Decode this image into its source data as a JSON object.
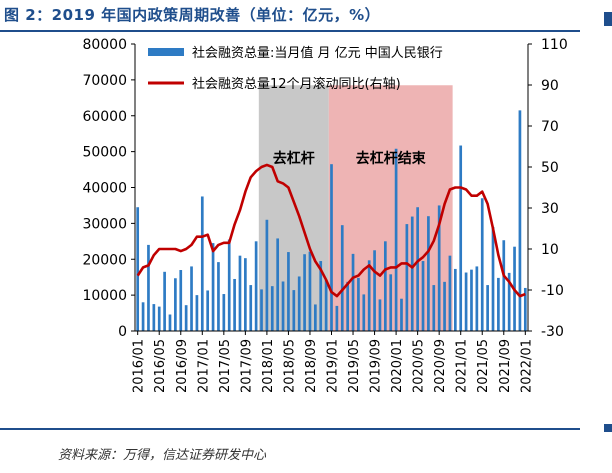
{
  "figure": {
    "title": "图 2：2019 年国内政策周期改善（单位：亿元，%）",
    "source": "资料来源：万得，信达证券研发中心"
  },
  "chart_data": {
    "type": "bar+line",
    "x_tick_labels": [
      "2016/01",
      "2016/05",
      "2016/09",
      "2017/01",
      "2017/05",
      "2017/09",
      "2018/01",
      "2018/05",
      "2018/09",
      "2019/01",
      "2019/05",
      "2019/09",
      "2020/01",
      "2020/05",
      "2020/09",
      "2021/01",
      "2021/05",
      "2021/09",
      "2022/01"
    ],
    "start_month": "2016/01",
    "y_left": {
      "min": 0,
      "max": 80000,
      "step": 10000
    },
    "y_right": {
      "min": -30,
      "max": 110,
      "ticks": [
        -30,
        -10,
        10,
        30,
        50,
        70,
        90,
        110
      ]
    },
    "colors": {
      "bar": "#2e7bc4",
      "line": "#c00000",
      "gray_band": "#c8c8c8",
      "pink_band": "#eeb4b4",
      "axis": "#000000"
    },
    "series": [
      {
        "name": "社会融资总量:当月值 月 亿元 中国人民银行",
        "axis": "left",
        "style": "bar",
        "values": [
          34500,
          8000,
          24000,
          7500,
          6800,
          16500,
          4600,
          14700,
          17000,
          7200,
          18000,
          10000,
          37500,
          11300,
          24500,
          19200,
          10300,
          25500,
          14500,
          21000,
          20300,
          12800,
          25000,
          11600,
          31000,
          12500,
          25800,
          13800,
          22000,
          11400,
          15200,
          21400,
          22100,
          7400,
          19500,
          14300,
          46500,
          7000,
          29500,
          13700,
          21500,
          14800,
          10200,
          19700,
          22500,
          8800,
          25000,
          15800,
          50800,
          9000,
          29800,
          31900,
          34500,
          19500,
          32000,
          12800,
          35000,
          13700,
          21000,
          17300,
          51700,
          16300,
          17100,
          18000,
          37000,
          12800,
          29000,
          14800,
          25300,
          16200,
          23500,
          61500,
          12000
        ]
      },
      {
        "name": "社会融资总量12个月滚动同比(右轴)",
        "axis": "right",
        "style": "line",
        "values": [
          -3,
          1,
          2,
          7,
          10,
          10,
          10,
          10,
          9,
          10,
          12,
          16,
          16,
          17,
          9,
          12,
          13,
          13,
          22,
          29,
          38,
          45,
          48,
          50,
          51,
          50,
          43,
          42,
          40,
          33,
          26,
          18,
          10,
          4,
          0,
          -5,
          -11,
          -13,
          -10,
          -7,
          -4,
          -3,
          0,
          2,
          -1,
          -3,
          0,
          1,
          1,
          3,
          3,
          1,
          4,
          6,
          9,
          14,
          22,
          32,
          39,
          40,
          40,
          39,
          36,
          36,
          38,
          32,
          20,
          7,
          -3,
          -6,
          -10,
          -13,
          -12
        ]
      }
    ],
    "annotations": [
      {
        "label": "去杠杆",
        "from": "2017/12",
        "to": "2018/12"
      },
      {
        "label": "去杠杆结束",
        "from": "2019/01",
        "to": "2020/11"
      }
    ]
  }
}
